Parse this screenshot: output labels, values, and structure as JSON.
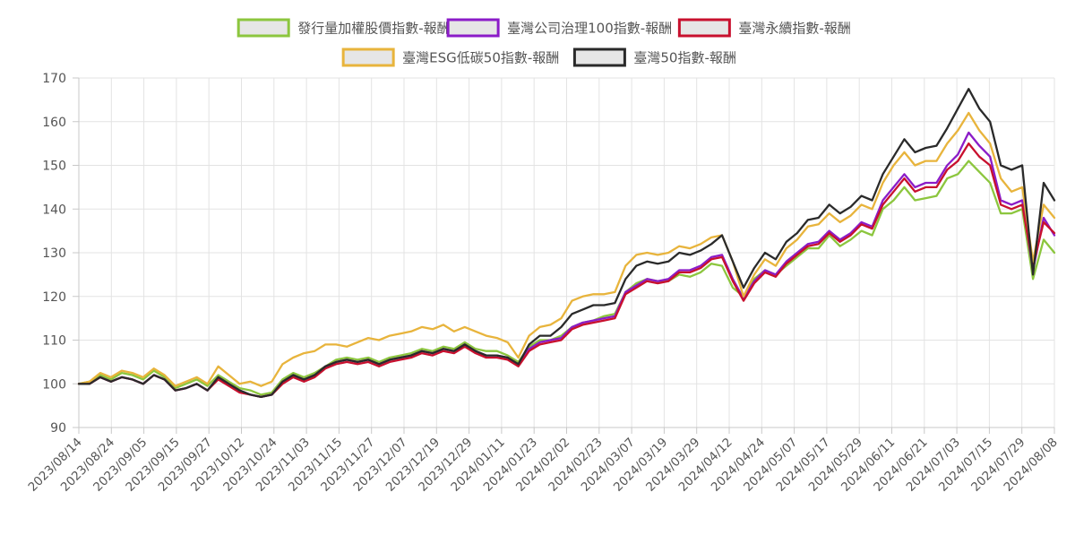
{
  "chart_data": {
    "type": "line",
    "ylim": [
      90,
      170
    ],
    "yticks": [
      90,
      100,
      110,
      120,
      130,
      140,
      150,
      160,
      170
    ],
    "grid": true,
    "legend_position": "top-center",
    "x_tick_labels": [
      "2023/08/14",
      "2023/08/24",
      "2023/09/05",
      "2023/09/15",
      "2023/09/27",
      "2023/10/12",
      "2023/10/24",
      "2023/11/03",
      "2023/11/15",
      "2023/11/27",
      "2023/12/07",
      "2023/12/19",
      "2023/12/29",
      "2024/01/11",
      "2024/01/23",
      "2024/02/02",
      "2024/02/23",
      "2024/03/07",
      "2024/03/19",
      "2024/03/29",
      "2024/04/12",
      "2024/04/24",
      "2024/05/07",
      "2024/05/17",
      "2024/05/29",
      "2024/06/11",
      "2024/06/21",
      "2024/07/03",
      "2024/07/15",
      "2024/07/29",
      "2024/08/08"
    ],
    "series": [
      {
        "name": "發行量加權股價指數-報酬",
        "color": "#8cc63e",
        "values": [
          100,
          100.5,
          102,
          101,
          102.5,
          102,
          101,
          103,
          101.5,
          99,
          100,
          101,
          99.5,
          102,
          100.5,
          99,
          98.5,
          97.5,
          98,
          101,
          102.5,
          101.5,
          102.5,
          104,
          105.5,
          106,
          105.5,
          106,
          105,
          106,
          106.5,
          107,
          108,
          107.5,
          108.5,
          108,
          109.5,
          108,
          107.5,
          107.5,
          106.5,
          105,
          108.5,
          110,
          110,
          111,
          113,
          114,
          114.5,
          115.5,
          116,
          121,
          123,
          124,
          123.5,
          123.5,
          125,
          124.5,
          125.5,
          127.5,
          127,
          122,
          120,
          124,
          126,
          125,
          127,
          129,
          131,
          131,
          134,
          131.5,
          133,
          135,
          134,
          140,
          142,
          145,
          142,
          142.5,
          143,
          147,
          148,
          151,
          148.5,
          146,
          139,
          139,
          140,
          124,
          133,
          130
        ]
      },
      {
        "name": "臺灣公司治理100指數-報酬",
        "color": "#8b1cc8",
        "values": [
          100,
          100,
          101.5,
          100.5,
          101.5,
          101,
          100,
          102,
          101,
          98.5,
          99,
          100,
          98.5,
          101.5,
          100,
          98.5,
          97.5,
          97,
          97.5,
          100.5,
          102,
          101,
          102,
          104,
          105,
          105.5,
          105,
          105.5,
          104.5,
          105.5,
          106,
          106.5,
          107.5,
          107,
          108,
          107.5,
          109,
          107.5,
          106.5,
          106.5,
          106,
          104.5,
          108,
          109.5,
          110,
          110.5,
          113,
          114,
          114.5,
          115,
          115.5,
          121,
          122.5,
          124,
          123.5,
          124,
          126,
          126,
          127,
          129,
          129.5,
          124,
          119.5,
          123.5,
          126,
          125,
          128,
          130,
          132,
          132.5,
          135,
          133,
          134.5,
          137,
          136,
          142,
          145,
          148,
          145,
          146,
          146,
          150,
          152.5,
          157.5,
          154.5,
          152,
          142,
          141,
          142,
          126,
          138,
          134
        ]
      },
      {
        "name": "臺灣永續指數-報酬",
        "color": "#c8102e",
        "values": [
          100,
          100,
          101.5,
          100.5,
          101.5,
          101,
          100,
          102,
          101,
          98.5,
          99,
          100,
          98.5,
          101,
          99.5,
          98,
          97.5,
          97,
          97.5,
          100,
          101.5,
          100.5,
          101.5,
          103.5,
          104.5,
          105,
          104.5,
          105,
          104,
          105,
          105.5,
          106,
          107,
          106.5,
          107.5,
          107,
          108.5,
          107,
          106,
          106,
          105.5,
          104,
          107.5,
          109,
          109.5,
          110,
          112.5,
          113.5,
          114,
          114.5,
          115,
          120.5,
          122,
          123.5,
          123,
          123.5,
          125.5,
          125.5,
          126.5,
          128.5,
          129,
          123.5,
          119,
          123,
          125.5,
          124.5,
          127.5,
          129.5,
          131.5,
          132,
          134.5,
          132.5,
          134,
          136.5,
          135.5,
          141,
          144,
          147,
          144,
          145,
          145,
          149,
          151,
          155,
          152,
          150,
          141,
          140,
          141,
          127,
          137,
          134.5
        ]
      },
      {
        "name": "臺灣ESG低碳50指數-報酬",
        "color": "#e8b43c",
        "values": [
          100,
          100.5,
          102.5,
          101.5,
          103,
          102.5,
          101.5,
          103.5,
          102,
          99.5,
          100.5,
          101.5,
          100,
          104,
          102,
          100,
          100.5,
          99.5,
          100.5,
          104.5,
          106,
          107,
          107.5,
          109,
          109,
          108.5,
          109.5,
          110.5,
          110,
          111,
          111.5,
          112,
          113,
          112.5,
          113.5,
          112,
          113,
          112,
          111,
          110.5,
          109.5,
          106,
          111,
          113,
          113.5,
          115,
          119,
          120,
          120.5,
          120.5,
          121,
          127,
          129.5,
          130,
          129.5,
          130,
          131.5,
          131,
          132,
          133.5,
          134,
          128,
          120,
          125,
          128.5,
          127,
          131,
          133,
          136,
          136.5,
          139,
          137,
          138.5,
          141,
          140,
          146,
          150,
          153,
          150,
          151,
          151,
          155,
          158,
          162,
          158,
          155,
          147,
          144,
          145,
          128,
          141,
          138
        ]
      },
      {
        "name": "臺灣50指數-報酬",
        "color": "#2a2a2a",
        "values": [
          100,
          100,
          101.5,
          100.5,
          101.5,
          101,
          100,
          102,
          101,
          98.5,
          99,
          100,
          98.5,
          101.5,
          100,
          98.5,
          97.5,
          97,
          97.5,
          100.5,
          102,
          101,
          102,
          104,
          105,
          105.5,
          105,
          105.5,
          104.5,
          105.5,
          106,
          106.5,
          107.5,
          107,
          108,
          107.5,
          109,
          107.5,
          106.5,
          106.5,
          106,
          104.5,
          109,
          111,
          111,
          113,
          116,
          117,
          118,
          118,
          118.5,
          124,
          127,
          128,
          127.5,
          128,
          130,
          129.5,
          130.5,
          132,
          134,
          128,
          122,
          126.5,
          130,
          128.5,
          132.5,
          134.5,
          137.5,
          138,
          141,
          139,
          140.5,
          143,
          142,
          148,
          152,
          156,
          153,
          154,
          154.5,
          158.5,
          163,
          167.5,
          163,
          160,
          150,
          149,
          150,
          125,
          146,
          142
        ]
      }
    ]
  }
}
